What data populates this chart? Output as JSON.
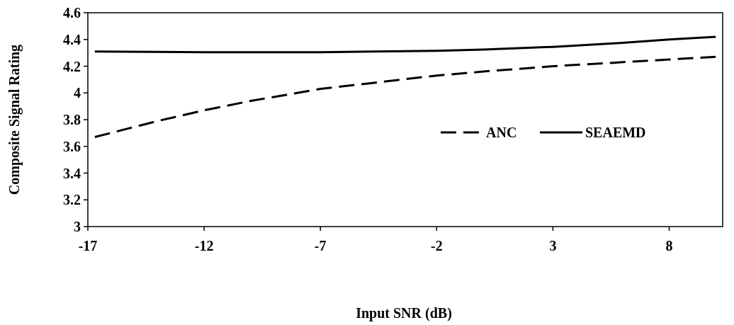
{
  "chart_data": {
    "type": "line",
    "xlabel": "Input SNR (dB)",
    "ylabel": "Composite Signal Rating",
    "xlim": [
      -17,
      10.3
    ],
    "xticks": [
      -17,
      -12,
      -7,
      -2,
      3,
      8
    ],
    "ylim": [
      3,
      4.6
    ],
    "yticks": [
      3,
      3.2,
      3.4,
      3.6,
      3.8,
      4,
      4.2,
      4.4,
      4.6
    ],
    "grid": false,
    "legend": "right",
    "marker": "none",
    "series": [
      {
        "name": "ANC",
        "color": "#000000",
        "line_style": "dashed",
        "x": [
          -16.7,
          -14,
          -12,
          -10,
          -7,
          -4,
          -2,
          0,
          3,
          6,
          8,
          10
        ],
        "values": [
          3.67,
          3.79,
          3.87,
          3.94,
          4.03,
          4.09,
          4.13,
          4.16,
          4.2,
          4.23,
          4.25,
          4.27
        ]
      },
      {
        "name": "SEAEMD",
        "color": "#000000",
        "line_style": "solid",
        "x": [
          -16.7,
          -12,
          -7,
          -2,
          0,
          3,
          6,
          8,
          10
        ],
        "values": [
          4.31,
          4.305,
          4.305,
          4.315,
          4.325,
          4.345,
          4.375,
          4.4,
          4.42
        ]
      }
    ]
  }
}
